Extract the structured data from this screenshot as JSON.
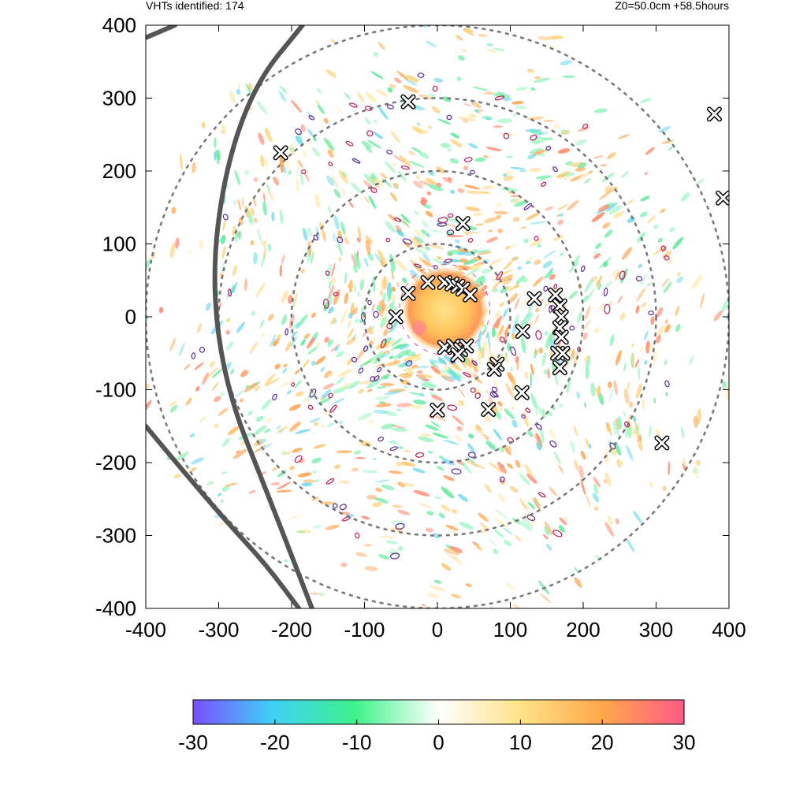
{
  "header": {
    "left_text": "VHTs identified: 174",
    "right_text": "Z0=50.0cm  +58.5hours"
  },
  "chart_data": {
    "type": "heatmap",
    "title": "",
    "xlabel": "",
    "ylabel": "",
    "xlim": [
      -400,
      400
    ],
    "ylim": [
      -400,
      400
    ],
    "xticks": [
      "-400",
      "-300",
      "-200",
      "-100",
      "0",
      "100",
      "200",
      "300",
      "400"
    ],
    "yticks": [
      "-400",
      "-300",
      "-200",
      "-100",
      "0",
      "100",
      "200",
      "300",
      "400"
    ],
    "range_rings": [
      100,
      200,
      300,
      400
    ],
    "range_ring_style": "dashed gray circles centered at (0,0)",
    "colorbar": {
      "range": [
        -30,
        30
      ],
      "ticks": [
        "-30",
        "-20",
        "-10",
        "0",
        "10",
        "20",
        "30"
      ],
      "colors": [
        "#7b4dff",
        "#3fd0f6",
        "#3ef28a",
        "#ffffff",
        "#ffe48c",
        "#ffa94a",
        "#ff5a86"
      ]
    },
    "vht_count": 174,
    "vht_markers": [
      [
        -40,
        295
      ],
      [
        -215,
        225
      ],
      [
        35,
        128
      ],
      [
        380,
        278
      ],
      [
        392,
        163
      ],
      [
        -40,
        32
      ],
      [
        -13,
        47
      ],
      [
        10,
        47
      ],
      [
        20,
        45
      ],
      [
        28,
        42
      ],
      [
        35,
        38
      ],
      [
        45,
        30
      ],
      [
        -57,
        0
      ],
      [
        133,
        25
      ],
      [
        162,
        30
      ],
      [
        168,
        15
      ],
      [
        170,
        0
      ],
      [
        168,
        -15
      ],
      [
        170,
        -28
      ],
      [
        117,
        -20
      ],
      [
        165,
        -50
      ],
      [
        172,
        -50
      ],
      [
        168,
        -70
      ],
      [
        82,
        -65
      ],
      [
        78,
        -72
      ],
      [
        10,
        -42
      ],
      [
        22,
        -40
      ],
      [
        32,
        -45
      ],
      [
        40,
        -40
      ],
      [
        28,
        -52
      ],
      [
        0,
        -128
      ],
      [
        116,
        -104
      ],
      [
        70,
        -127
      ],
      [
        308,
        -173
      ]
    ],
    "track_lines": [
      {
        "points": [
          [
            -400,
            383
          ],
          [
            -360,
            400
          ]
        ]
      },
      {
        "points": [
          [
            -185,
            400
          ],
          [
            -250,
            320
          ],
          [
            -292,
            200
          ],
          [
            -310,
            50
          ],
          [
            -290,
            -100
          ],
          [
            -230,
            -250
          ],
          [
            -172,
            -400
          ]
        ]
      },
      {
        "points": [
          [
            -400,
            -150
          ],
          [
            -350,
            -210
          ],
          [
            -290,
            -280
          ],
          [
            -235,
            -340
          ],
          [
            -190,
            -400
          ]
        ]
      }
    ]
  }
}
